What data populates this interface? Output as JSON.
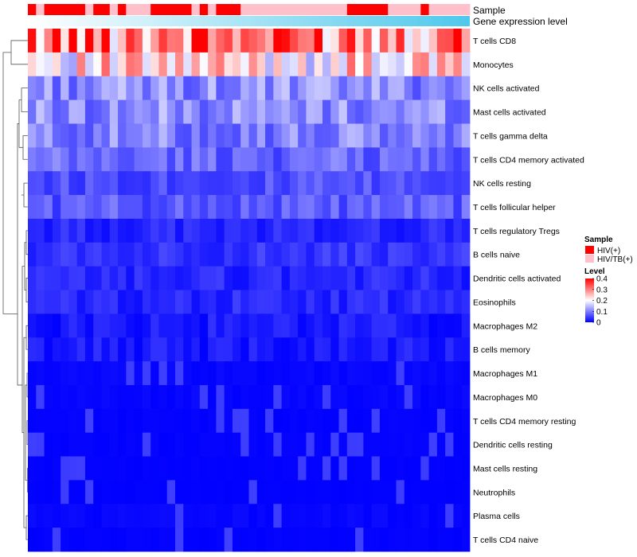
{
  "chart_data": {
    "type": "heatmap",
    "title": "",
    "annotations": {
      "sample_label": "Sample",
      "expression_label": "Gene expression level",
      "sample_groups": [
        "HIV(+)",
        "HIV/TB(+)"
      ],
      "sample_colors": [
        "#ff0000",
        "#ffc0cb"
      ],
      "samples": [
        0,
        1,
        0,
        0,
        0,
        0,
        0,
        1,
        0,
        0,
        1,
        0,
        1,
        1,
        1,
        0,
        0,
        0,
        0,
        0,
        1,
        0,
        1,
        0,
        0,
        0,
        1,
        1,
        1,
        1,
        1,
        1,
        1,
        1,
        1,
        1,
        1,
        1,
        1,
        0,
        0,
        0,
        0,
        0,
        1,
        1,
        1,
        1,
        0,
        1,
        1,
        1,
        1,
        1
      ]
    },
    "rows": [
      "T cells CD8",
      "Monocytes",
      "NK cells activated",
      "Mast cells activated",
      "T cells gamma delta",
      "T cells CD4 memory activated",
      "NK cells resting",
      "T cells follicular helper",
      "T cells regulatory  Tregs",
      "B cells naive",
      "Dendritic cells activated",
      "Eosinophils",
      "Macrophages M2",
      "B cells memory",
      "Macrophages M1",
      "Macrophages M0",
      "T cells CD4 memory resting",
      "Dendritic cells resting",
      "Mast cells resting",
      "Neutrophils",
      "Plasma cells",
      "T cells CD4 naive"
    ],
    "row_means": [
      0.32,
      0.22,
      0.11,
      0.11,
      0.1,
      0.08,
      0.06,
      0.07,
      0.03,
      0.04,
      0.03,
      0.03,
      0.02,
      0.02,
      0.01,
      0.01,
      0.005,
      0.005,
      0.003,
      0.002,
      0.01,
      0.004
    ],
    "n_columns": 54,
    "legend": {
      "sample_title": "Sample",
      "level_title": "Level",
      "level_ticks": [
        "0.4",
        "0.3",
        "0.2",
        "0.1",
        "0"
      ],
      "level_range": [
        0,
        0.4
      ],
      "colors": {
        "low": "#0000ff",
        "mid": "#ffffff",
        "high": "#ff0000"
      }
    },
    "expression_gradient": [
      "#ffffff",
      "#4ec8ec"
    ]
  }
}
